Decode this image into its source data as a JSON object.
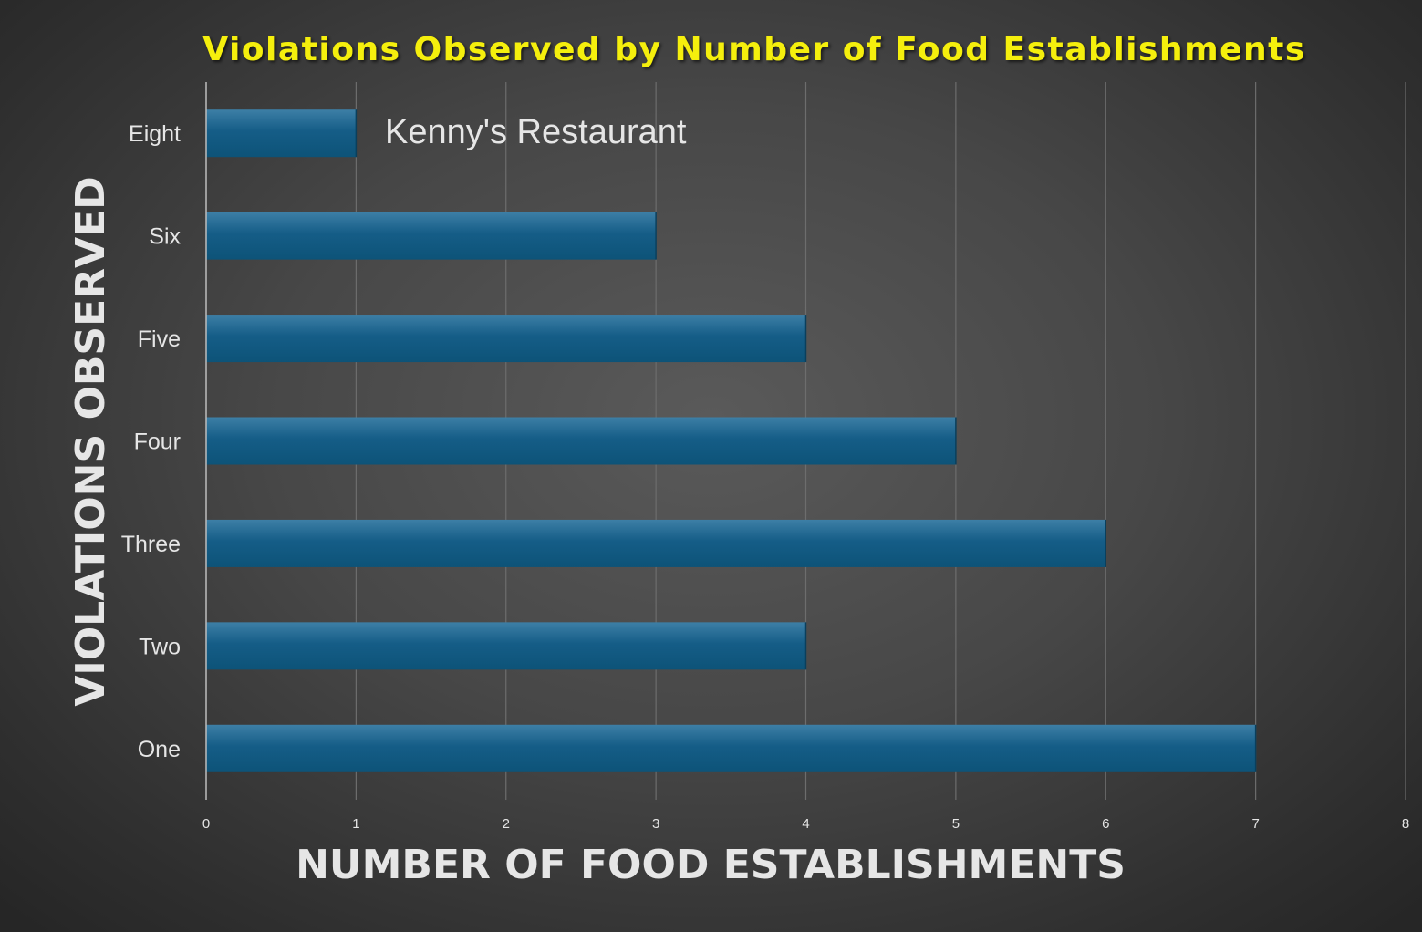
{
  "chart_data": {
    "type": "bar",
    "orientation": "horizontal",
    "title": "Violations Observed by Number of Food Establishments",
    "xlabel": "NUMBER OF FOOD ESTABLISHMENTS",
    "ylabel": "VIOLATIONS OBSERVED",
    "categories": [
      "Eight",
      "Six",
      "Five",
      "Four",
      "Three",
      "Two",
      "One"
    ],
    "values": [
      1,
      3,
      4,
      5,
      6,
      4,
      7
    ],
    "xlim": [
      0,
      8
    ],
    "xticks": [
      "0",
      "1",
      "2",
      "3",
      "4",
      "5",
      "6",
      "7",
      "8"
    ],
    "grid": true,
    "legend": "none",
    "annotation": "Kenny's Restaurant",
    "colors": {
      "bar": "#155d87",
      "bar_top": "#3d7fa6",
      "title": "#f5ef0a",
      "text": "#e6e6e6",
      "grid": "#6d6d6d",
      "axis": "#bdbdbd"
    }
  }
}
